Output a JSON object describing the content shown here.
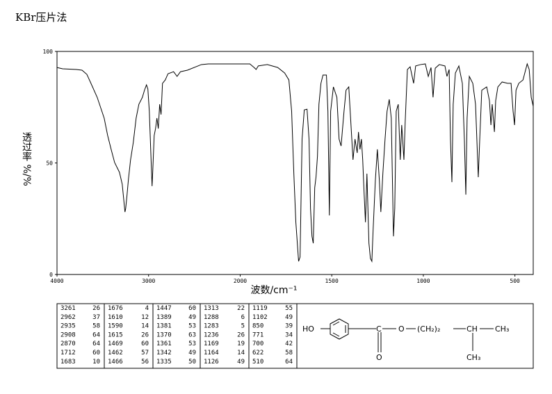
{
  "chart_data": {
    "type": "line",
    "title": "KBr压片法",
    "xlabel": "波数/cm⁻¹",
    "ylabel": "透过率 %/%",
    "color": "#000000",
    "xlim": [
      4000,
      400
    ],
    "xticks": [
      4000,
      3000,
      2000,
      1500,
      1000,
      500
    ],
    "xscale": {
      "break": 2000,
      "compression": 2
    },
    "ylim": [
      0,
      100
    ],
    "yticks": [
      0,
      50,
      100
    ],
    "x": [
      4000,
      3939,
      3788,
      3727,
      3674,
      3636,
      3561,
      3485,
      3447,
      3409,
      3371,
      3318,
      3288,
      3273,
      3258,
      3250,
      3235,
      3220,
      3197,
      3167,
      3136,
      3106,
      3068,
      3045,
      3023,
      3008,
      2992,
      2977,
      2962,
      2955,
      2939,
      2924,
      2909,
      2894,
      2879,
      2864,
      2848,
      2818,
      2788,
      2727,
      2689,
      2652,
      2576,
      2424,
      2348,
      2197,
      2045,
      1947,
      1924,
      1913,
      1901,
      1852,
      1795,
      1757,
      1734,
      1719,
      1707,
      1696,
      1681,
      1673,
      1662,
      1650,
      1635,
      1624,
      1616,
      1608,
      1601,
      1593,
      1586,
      1578,
      1570,
      1559,
      1548,
      1529,
      1521,
      1513,
      1506,
      1491,
      1472,
      1460,
      1449,
      1433,
      1422,
      1407,
      1395,
      1384,
      1373,
      1361,
      1354,
      1346,
      1338,
      1331,
      1323,
      1316,
      1308,
      1297,
      1289,
      1281,
      1274,
      1262,
      1251,
      1240,
      1232,
      1221,
      1209,
      1198,
      1186,
      1175,
      1163,
      1156,
      1148,
      1137,
      1126,
      1118,
      1106,
      1099,
      1087,
      1072,
      1053,
      1042,
      1015,
      989,
      973,
      958,
      947,
      935,
      913,
      882,
      871,
      859,
      852,
      844,
      837,
      825,
      806,
      787,
      776,
      768,
      761,
      749,
      730,
      715,
      700,
      692,
      681,
      654,
      639,
      631,
      624,
      612,
      605,
      593,
      570,
      540,
      521,
      510,
      502,
      494,
      479,
      456,
      433,
      422,
      411,
      400
    ],
    "values": [
      92.8,
      92.2,
      91.9,
      91.6,
      89.7,
      86.3,
      79.4,
      70.1,
      62.3,
      56.1,
      50.2,
      45.8,
      40.5,
      34.3,
      28.0,
      29.6,
      35.8,
      42.7,
      51.4,
      59.2,
      70.1,
      76.3,
      79.4,
      82.6,
      85.0,
      83.2,
      73.2,
      56.1,
      39.6,
      45.8,
      62.3,
      65.4,
      70.1,
      65.4,
      76.3,
      71.7,
      85.7,
      87.2,
      90.0,
      90.9,
      88.8,
      90.9,
      91.6,
      94.1,
      94.4,
      94.4,
      94.4,
      94.4,
      92.8,
      91.9,
      93.5,
      94.1,
      92.8,
      90.3,
      87.2,
      73.2,
      45.2,
      23.4,
      5.9,
      7.8,
      60.7,
      73.8,
      74.1,
      60.7,
      29.6,
      17.1,
      14.0,
      38.9,
      43.6,
      53.0,
      76.3,
      85.7,
      89.4,
      89.4,
      73.2,
      26.5,
      73.2,
      84.1,
      79.4,
      60.7,
      57.6,
      73.2,
      82.6,
      84.1,
      67.0,
      51.4,
      60.7,
      54.5,
      63.9,
      56.1,
      60.7,
      51.4,
      35.8,
      23.4,
      45.2,
      14.0,
      7.2,
      5.9,
      20.2,
      42.1,
      56.1,
      42.1,
      28.0,
      45.2,
      60.7,
      73.2,
      78.5,
      70.1,
      17.1,
      29.6,
      73.2,
      76.3,
      51.4,
      67.0,
      51.4,
      68.5,
      91.9,
      93.1,
      85.7,
      93.5,
      94.1,
      94.4,
      88.8,
      92.8,
      79.4,
      92.5,
      94.1,
      93.5,
      88.8,
      91.9,
      60.7,
      41.4,
      76.3,
      90.3,
      93.5,
      85.7,
      60.7,
      35.8,
      70.1,
      88.8,
      85.7,
      76.3,
      43.6,
      60.7,
      82.6,
      84.1,
      77.9,
      67.0,
      76.3,
      63.9,
      77.9,
      84.1,
      86.3,
      85.7,
      85.7,
      73.2,
      67.0,
      82.6,
      85.7,
      87.2,
      94.4,
      91.9,
      79.4,
      75.4
    ]
  },
  "peak_table": [
    [
      [
        3261,
        26
      ],
      [
        2962,
        37
      ],
      [
        2935,
        58
      ],
      [
        2908,
        64
      ],
      [
        2870,
        64
      ],
      [
        1712,
        60
      ],
      [
        1683,
        10
      ]
    ],
    [
      [
        1676,
        4
      ],
      [
        1610,
        12
      ],
      [
        1590,
        14
      ],
      [
        1615,
        26
      ],
      [
        1469,
        60
      ],
      [
        1462,
        57
      ],
      [
        1466,
        56
      ]
    ],
    [
      [
        1447,
        60
      ],
      [
        1389,
        49
      ],
      [
        1381,
        53
      ],
      [
        1370,
        63
      ],
      [
        1361,
        53
      ],
      [
        1342,
        49
      ],
      [
        1335,
        50
      ]
    ],
    [
      [
        1313,
        22
      ],
      [
        1288,
        6
      ],
      [
        1283,
        5
      ],
      [
        1236,
        26
      ],
      [
        1169,
        19
      ],
      [
        1164,
        14
      ],
      [
        1126,
        49
      ]
    ],
    [
      [
        1119,
        55
      ],
      [
        1102,
        49
      ],
      [
        850,
        39
      ],
      [
        771,
        34
      ],
      [
        700,
        42
      ],
      [
        622,
        58
      ],
      [
        510,
        64
      ]
    ]
  ],
  "structure": {
    "hydroxyl": "HO",
    "carbon": "C",
    "carbonyl_oxygen": "O",
    "ester_oxygen": "O",
    "chain": "(CH₂)₂",
    "methine": "CH",
    "methyl_right": "CH₃",
    "methyl_down": "CH₃"
  }
}
